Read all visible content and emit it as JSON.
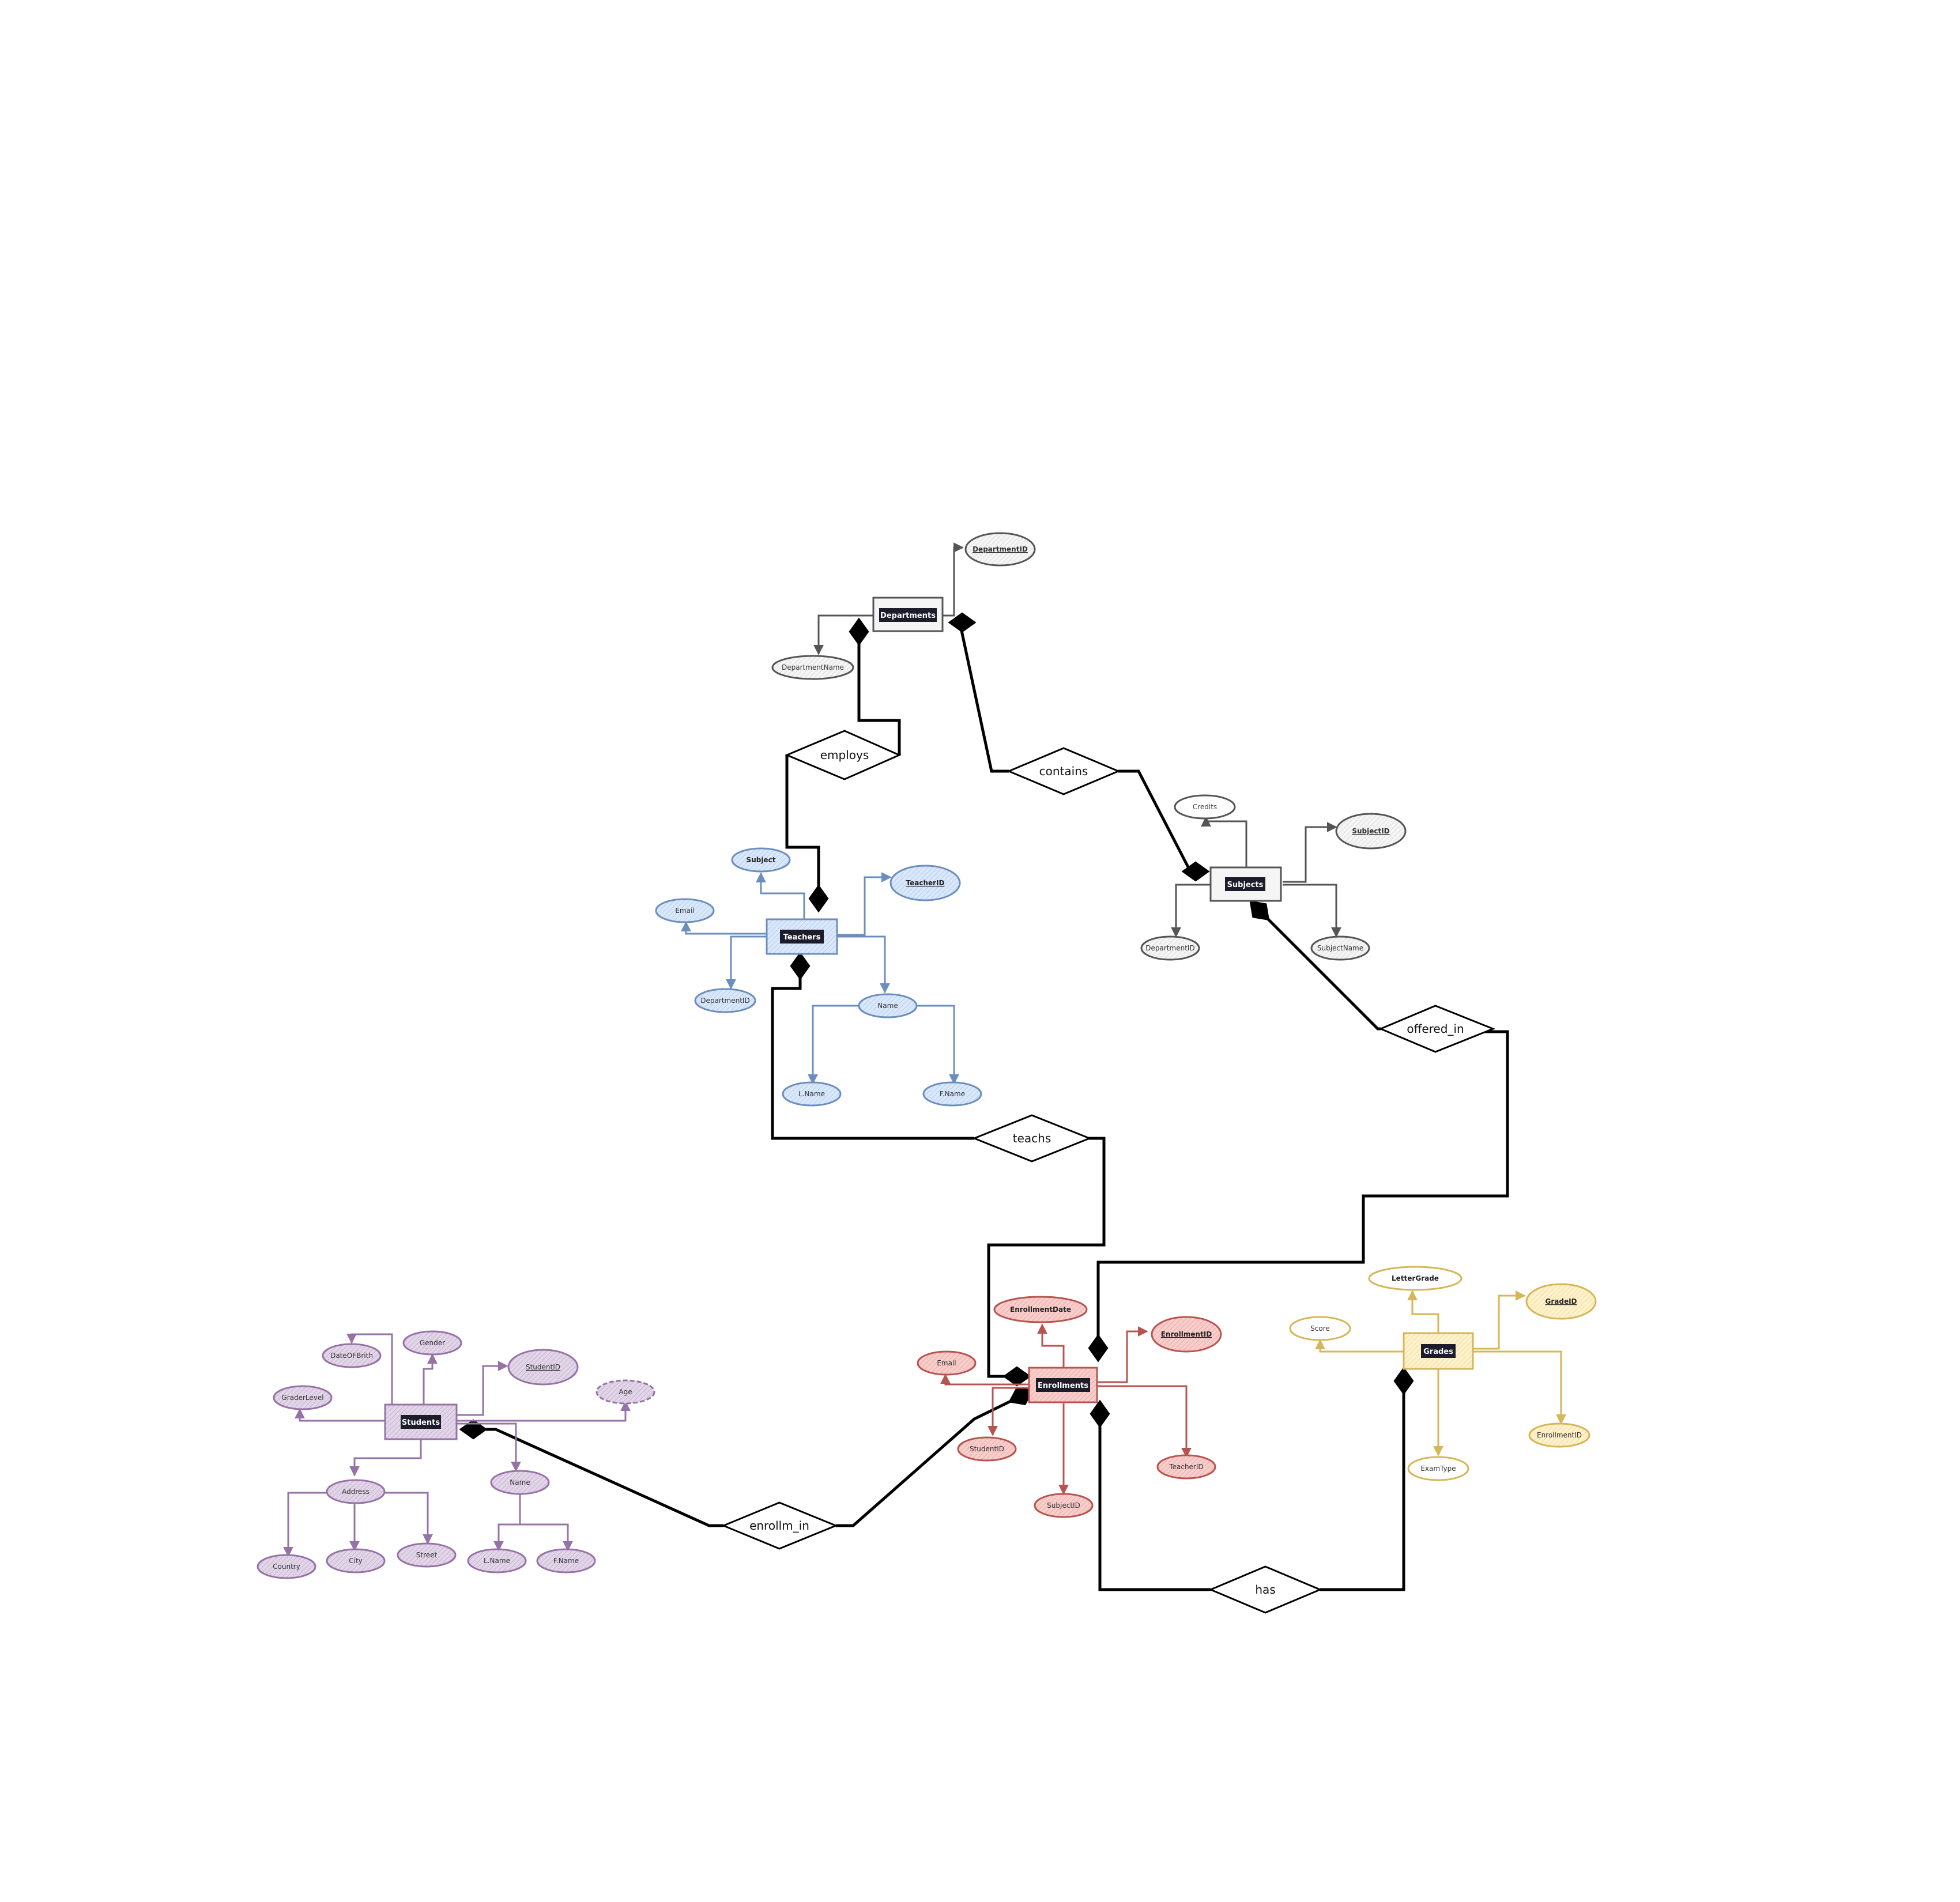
{
  "colors": {
    "departments": "#555555",
    "teachers": "#6c8ebf",
    "subjects": "#555555",
    "students": "#9673a6",
    "enrollments": "#b85450",
    "grades": "#d6b656",
    "relationship": "#000000"
  },
  "entities": {
    "departments": "Departments",
    "teachers": "Teachers",
    "subjects": "Subjects",
    "students": "Students",
    "enrollments": "Enrollments",
    "grades": "Grades"
  },
  "relationships": {
    "employs": "employs",
    "contains": "contains",
    "offered_in": "offered_in",
    "teachs": "teachs",
    "enrollm_in": "enrollm_in",
    "has": "has"
  },
  "attributes": {
    "departments": {
      "department_id": "DepartmentID",
      "department_name": "DepartmentName"
    },
    "teachers": {
      "subject": "Subject",
      "teacher_id": "TeacherID",
      "email": "Email",
      "department_id": "DepartmentID",
      "name": "Name",
      "l_name": "L.Name",
      "f_name": "F.Name"
    },
    "subjects": {
      "credits": "Credits",
      "subject_id": "SubjectID",
      "department_id": "DepartmentID",
      "subject_name": "SubjectName"
    },
    "students": {
      "date_of_birth": "DateOFBrith",
      "gender": "Gender",
      "student_id": "StudentID",
      "grader_level": "GraderLevel",
      "age": "Age",
      "address": "Address",
      "name": "Name",
      "country": "Country",
      "city": "City",
      "street": "Street",
      "l_name": "L.Name",
      "f_name": "F.Name"
    },
    "enrollments": {
      "enrollment_date": "EnrollmentDate",
      "enrollment_id": "EnrollmentID",
      "email": "Email",
      "student_id": "StudentID",
      "teacher_id": "TeacherID",
      "subject_id": "SubjectID"
    },
    "grades": {
      "letter_grade": "LetterGrade",
      "grade_id": "GradeID",
      "score": "Score",
      "exam_type": "ExamType",
      "enrollment_id": "EnrollmentID"
    }
  }
}
